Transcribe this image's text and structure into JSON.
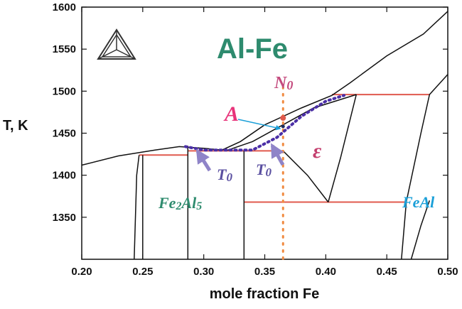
{
  "chart_data": {
    "type": "phase-diagram",
    "title": "Al-Fe",
    "xlabel": "mole fraction Fe",
    "ylabel": "T, K",
    "xlim": [
      0.2,
      0.5
    ],
    "ylim": [
      1300,
      1600
    ],
    "xticks": [
      "0.20",
      "0.25",
      "0.30",
      "0.35",
      "0.40",
      "0.45",
      "0.50"
    ],
    "yticks": [
      "1350",
      "1400",
      "1450",
      "1500",
      "1550",
      "1600"
    ],
    "phase_labels": {
      "epsilon": "ε",
      "fe2al5": {
        "base": "Fe",
        "sub1": "2",
        "mid": "Al",
        "sub2": "5"
      },
      "feal": "FeAl"
    },
    "annotations": {
      "point_a": "A",
      "n0": {
        "base": "N",
        "sub": "0"
      },
      "t0_left": {
        "base": "T",
        "sub": "0"
      },
      "t0_right": {
        "base": "T",
        "sub": "0"
      }
    },
    "composition_line_x": 0.365,
    "point_a_T": 1458,
    "phase_boundaries": [
      {
        "name": "liquidus",
        "points": [
          [
            0.2,
            1412
          ],
          [
            0.23,
            1423
          ],
          [
            0.26,
            1430
          ],
          [
            0.28,
            1434
          ],
          [
            0.3,
            1432
          ],
          [
            0.315,
            1430
          ],
          [
            0.33,
            1440
          ],
          [
            0.35,
            1460
          ],
          [
            0.38,
            1480
          ],
          [
            0.405,
            1495
          ],
          [
            0.42,
            1510
          ],
          [
            0.45,
            1542
          ],
          [
            0.48,
            1568
          ],
          [
            0.5,
            1595
          ]
        ]
      },
      {
        "name": "solidus-left",
        "points": [
          [
            0.243,
            1300
          ],
          [
            0.245,
            1400
          ],
          [
            0.247,
            1424
          ]
        ]
      },
      {
        "name": "fe2al5-right",
        "points": [
          [
            0.25,
            1300
          ],
          [
            0.25,
            1424
          ]
        ]
      },
      {
        "name": "line-0.287",
        "points": [
          [
            0.287,
            1300
          ],
          [
            0.287,
            1435
          ]
        ]
      },
      {
        "name": "line-0.333",
        "points": [
          [
            0.333,
            1300
          ],
          [
            0.333,
            1429
          ]
        ]
      },
      {
        "name": "eps-solidus",
        "points": [
          [
            0.318,
            1429
          ],
          [
            0.34,
            1440
          ],
          [
            0.365,
            1460
          ],
          [
            0.39,
            1480
          ],
          [
            0.425,
            1496
          ]
        ]
      },
      {
        "name": "eps-left-bottom",
        "points": [
          [
            0.365,
            1429
          ],
          [
            0.385,
            1400
          ],
          [
            0.402,
            1368
          ]
        ]
      },
      {
        "name": "eps-right",
        "points": [
          [
            0.402,
            1368
          ],
          [
            0.412,
            1420
          ],
          [
            0.425,
            1496
          ]
        ]
      },
      {
        "name": "feal-left",
        "points": [
          [
            0.462,
            1300
          ],
          [
            0.466,
            1368
          ],
          [
            0.478,
            1450
          ],
          [
            0.485,
            1496
          ],
          [
            0.5,
            1520
          ]
        ]
      },
      {
        "name": "feal-lower",
        "points": [
          [
            0.47,
            1300
          ],
          [
            0.478,
            1340
          ],
          [
            0.485,
            1370
          ]
        ]
      }
    ],
    "invariant_lines": [
      {
        "T": 1424,
        "x": [
          0.247,
          0.287
        ],
        "color": "#e05a4e"
      },
      {
        "T": 1429,
        "x": [
          0.287,
          0.365
        ],
        "color": "#e05a4e"
      },
      {
        "T": 1496,
        "x": [
          0.405,
          0.485
        ],
        "color": "#e05a4e"
      },
      {
        "T": 1368,
        "x": [
          0.333,
          0.466
        ],
        "color": "#e05a4e"
      }
    ],
    "t0_curve": {
      "color": "#4b2fa6",
      "points": [
        [
          0.285,
          1434
        ],
        [
          0.3,
          1430
        ],
        [
          0.34,
          1430
        ],
        [
          0.36,
          1445
        ],
        [
          0.38,
          1470
        ],
        [
          0.4,
          1488
        ],
        [
          0.415,
          1495
        ]
      ]
    },
    "colors": {
      "title": "#2e8b6e",
      "phase_line": "#111111",
      "tie_line": "#e05a4e",
      "composition_line": "#f08a40",
      "t0_curve": "#4b2fa6",
      "point_a": "#e8337a",
      "n0": "#c44b7e",
      "t0_label": "#5a4fa0",
      "arrow": "#8f84c8",
      "epsilon": "#c43f6e",
      "fe2al5": "#2e8b6e",
      "feal": "#1a9fd8"
    }
  }
}
